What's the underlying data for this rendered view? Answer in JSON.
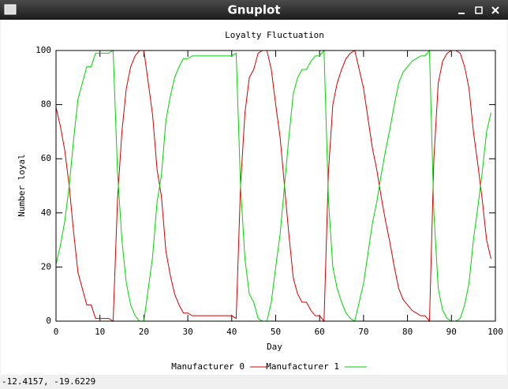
{
  "window_title": "Gnuplot",
  "status": "-12.4157, -19.6229",
  "chart_data": {
    "type": "line",
    "title": "Loyalty Fluctuation",
    "x_label": "Day",
    "y_label": "Number loyal",
    "x": [
      0,
      1,
      2,
      3,
      4,
      5,
      6,
      7,
      8,
      9,
      10,
      11,
      12,
      13,
      14,
      15,
      16,
      17,
      18,
      19,
      20,
      21,
      22,
      23,
      24,
      25,
      26,
      27,
      28,
      29,
      30,
      31,
      32,
      33,
      34,
      35,
      36,
      37,
      38,
      39,
      40,
      41,
      42,
      43,
      44,
      45,
      46,
      47,
      48,
      49,
      50,
      51,
      52,
      53,
      54,
      55,
      56,
      57,
      58,
      59,
      60,
      61,
      62,
      63,
      64,
      65,
      66,
      67,
      68,
      69,
      70,
      71,
      72,
      73,
      74,
      75,
      76,
      77,
      78,
      79,
      80,
      81,
      82,
      83,
      84,
      85,
      86,
      87,
      88,
      89,
      90,
      91,
      92,
      93,
      94,
      95,
      96,
      97,
      98,
      99
    ],
    "series": [
      {
        "name": "Manufacturer 0",
        "color": "#d40000",
        "values": [
          79,
          72,
          63,
          50,
          33,
          18,
          12,
          6,
          6,
          1,
          1,
          1,
          1,
          0,
          45,
          70,
          86,
          94,
          98,
          100,
          100,
          88,
          76,
          56,
          46,
          26,
          17,
          10,
          6,
          3,
          3,
          2,
          2,
          2,
          2,
          2,
          2,
          2,
          2,
          2,
          2,
          1,
          50,
          77,
          90,
          93,
          99,
          100,
          100,
          93,
          80,
          68,
          50,
          32,
          16,
          10,
          7,
          7,
          4,
          2,
          2,
          0,
          55,
          80,
          88,
          93,
          97,
          99,
          100,
          93,
          86,
          75,
          64,
          56,
          46,
          37,
          29,
          20,
          12,
          8,
          6,
          4,
          3,
          2,
          2,
          0,
          60,
          88,
          96,
          99,
          100,
          100,
          99,
          94,
          86,
          70,
          58,
          45,
          30,
          23
        ]
      },
      {
        "name": "Manufacturer 1",
        "color": "#00d400",
        "values": [
          21,
          28,
          37,
          50,
          67,
          82,
          88,
          94,
          94,
          99,
          99,
          99,
          99,
          100,
          55,
          30,
          14,
          6,
          2,
          0,
          0,
          12,
          24,
          44,
          54,
          74,
          83,
          90,
          94,
          97,
          97,
          98,
          98,
          98,
          98,
          98,
          98,
          98,
          98,
          98,
          98,
          99,
          50,
          23,
          10,
          7,
          1,
          0,
          0,
          7,
          20,
          32,
          50,
          68,
          84,
          90,
          93,
          93,
          96,
          98,
          98,
          100,
          45,
          20,
          12,
          7,
          3,
          1,
          0,
          7,
          14,
          25,
          36,
          44,
          54,
          63,
          71,
          80,
          88,
          92,
          94,
          96,
          97,
          98,
          98,
          100,
          40,
          12,
          4,
          1,
          0,
          0,
          1,
          6,
          14,
          30,
          42,
          55,
          70,
          77
        ]
      }
    ],
    "xlim": [
      0,
      100
    ],
    "xticks": [
      0,
      10,
      20,
      30,
      40,
      50,
      60,
      70,
      80,
      90,
      100
    ],
    "ylim": [
      0,
      100
    ],
    "yticks": [
      0,
      20,
      40,
      60,
      80,
      100
    ],
    "grid": false
  }
}
